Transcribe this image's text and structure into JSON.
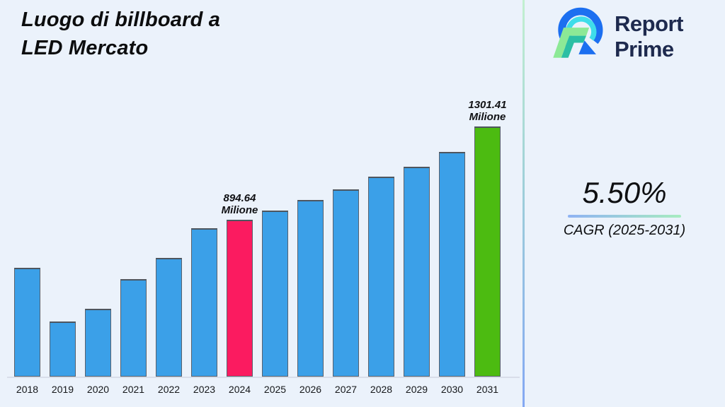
{
  "header": {
    "title": "Luogo di billboard a\nLED Mercato",
    "logo": {
      "line1": "Report",
      "line2": "Prime",
      "text_color": "#1E2A4E"
    }
  },
  "chart_data": {
    "type": "bar",
    "title": "Luogo di billboard a LED Mercato",
    "categories": [
      "2018",
      "2019",
      "2020",
      "2021",
      "2022",
      "2023",
      "2024",
      "2025",
      "2026",
      "2027",
      "2028",
      "2029",
      "2030",
      "2031"
    ],
    "values": [
      685,
      451,
      506,
      636,
      728,
      858,
      894.64,
      935,
      981,
      1027,
      1083,
      1126,
      1190,
      1301.41
    ],
    "unit": "Milione",
    "labeled_values": {
      "2024": "894.64 Milione",
      "2031": "1301.41 Milione"
    },
    "data_labels": [
      null,
      null,
      null,
      null,
      null,
      null,
      "894.64\nMilione",
      null,
      null,
      null,
      null,
      null,
      null,
      "1301.41\nMilione"
    ],
    "bar_colors": [
      "#3BA0E8",
      "#3BA0E8",
      "#3BA0E8",
      "#3BA0E8",
      "#3BA0E8",
      "#3BA0E8",
      "#FB1B60",
      "#3BA0E8",
      "#3BA0E8",
      "#3BA0E8",
      "#3BA0E8",
      "#3BA0E8",
      "#3BA0E8",
      "#4CBB11"
    ],
    "xlabel": "",
    "ylabel": "",
    "grid": false,
    "legend": false
  },
  "cagr": {
    "value": "5.50%",
    "label": "CAGR (2025-2031)"
  },
  "colors": {
    "background": "#EBF2FB",
    "bar_blue": "#3BA0E8",
    "bar_pink": "#FB1B60",
    "bar_green": "#4CBB11",
    "bar_border": "#59616D",
    "divider_top": "#C2F0D0",
    "divider_bottom": "#84A8F3",
    "underline_left": "#8FB3F3",
    "underline_right": "#A7ECC0",
    "logo_blue": "#1C6FF0",
    "logo_cyan": "#3FDDEA",
    "logo_light_green": "#8CE996",
    "logo_teal": "#2BBFA4"
  }
}
